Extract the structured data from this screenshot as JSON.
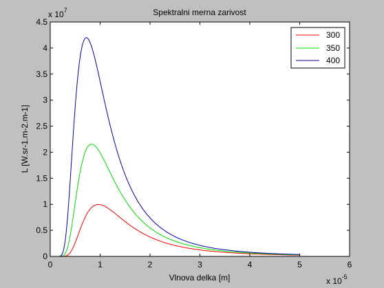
{
  "chart_data": {
    "type": "line",
    "title": "Spektralni merna zarivost",
    "xlabel": "Vlnova delka [m]",
    "ylabel": "L [W.sr-1.m-2.m-1]",
    "x_exponent_label": "x 10",
    "x_exponent": "-5",
    "y_exponent_label": "x 10",
    "y_exponent": "7",
    "xlim": [
      0,
      6
    ],
    "ylim": [
      0,
      4.5
    ],
    "xticks": [
      0,
      1,
      2,
      3,
      4,
      5,
      6
    ],
    "yticks": [
      0,
      0.5,
      1,
      1.5,
      2,
      2.5,
      3,
      3.5,
      4,
      4.5
    ],
    "xtick_labels": [
      "0",
      "1",
      "2",
      "3",
      "4",
      "5",
      "6"
    ],
    "ytick_labels": [
      "0",
      "0.5",
      "1",
      "1.5",
      "2",
      "2.5",
      "3",
      "3.5",
      "4",
      "4.5"
    ],
    "grid": false,
    "legend_position": "top-right",
    "x_range": [
      0.01,
      5
    ],
    "series": [
      {
        "name": "300",
        "color": "#ff0000",
        "temperature": 300
      },
      {
        "name": "350",
        "color": "#00dd00",
        "temperature": 350
      },
      {
        "name": "400",
        "color": "#0000aa",
        "temperature": 400
      }
    ]
  }
}
